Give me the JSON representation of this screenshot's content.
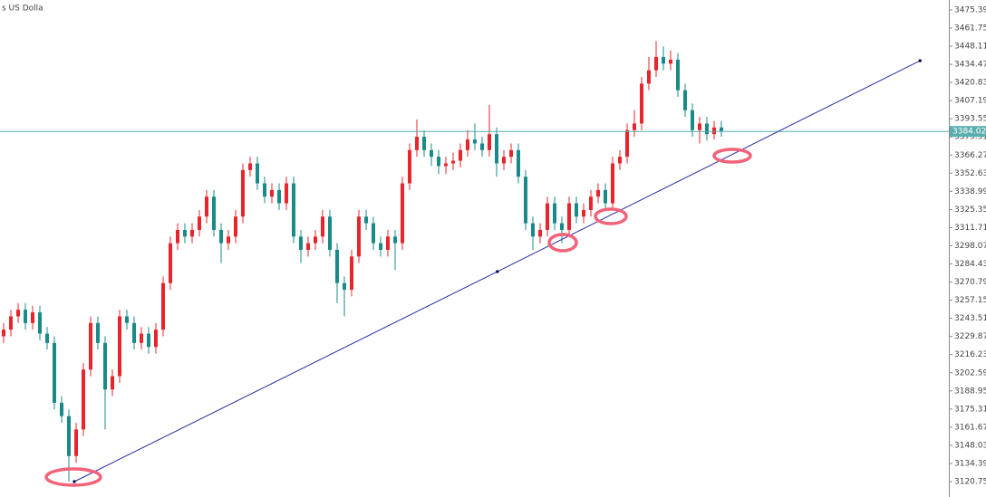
{
  "chart_data": {
    "type": "candlestick",
    "title": "s US Dolla",
    "up_color": "#e8242c",
    "down_color": "#1a8a88",
    "open": [
      3230,
      3235,
      3245,
      3250,
      3240,
      3248,
      3232,
      3225,
      3180,
      3170,
      3140,
      3160,
      3205,
      3240,
      3225,
      3190,
      3200,
      3245,
      3240,
      3225,
      3232,
      3222,
      3235,
      3270,
      3300,
      3310,
      3305,
      3310,
      3320,
      3335,
      3310,
      3300,
      3305,
      3320,
      3355,
      3360,
      3345,
      3335,
      3340,
      3330,
      3345,
      3305,
      3295,
      3300,
      3305,
      3320,
      3295,
      3270,
      3265,
      3290,
      3320,
      3315,
      3300,
      3295,
      3305,
      3300,
      3345,
      3370,
      3380,
      3370,
      3365,
      3358,
      3360,
      3362,
      3370,
      3378,
      3375,
      3370,
      3382,
      3360,
      3365,
      3370,
      3350,
      3315,
      3305,
      3310,
      3330,
      3315,
      3310,
      3330,
      3320,
      3325,
      3335,
      3340,
      3330,
      3360,
      3365,
      3385,
      3390,
      3420,
      3430,
      3440,
      3435,
      3438,
      3415,
      3400,
      3385,
      3390,
      3382,
      3387
    ],
    "high": [
      3240,
      3250,
      3255,
      3255,
      3253,
      3253,
      3237,
      3230,
      3185,
      3175,
      3165,
      3210,
      3245,
      3245,
      3230,
      3205,
      3250,
      3250,
      3245,
      3237,
      3237,
      3240,
      3275,
      3305,
      3315,
      3315,
      3315,
      3325,
      3340,
      3340,
      3315,
      3310,
      3325,
      3360,
      3365,
      3365,
      3350,
      3345,
      3345,
      3350,
      3350,
      3310,
      3305,
      3310,
      3325,
      3325,
      3300,
      3275,
      3295,
      3325,
      3325,
      3320,
      3305,
      3310,
      3310,
      3350,
      3375,
      3393,
      3385,
      3375,
      3370,
      3365,
      3368,
      3375,
      3385,
      3390,
      3380,
      3404,
      3387,
      3370,
      3375,
      3375,
      3355,
      3320,
      3315,
      3335,
      3335,
      3320,
      3335,
      3335,
      3330,
      3340,
      3345,
      3345,
      3365,
      3370,
      3390,
      3400,
      3425,
      3440,
      3452,
      3448,
      3445,
      3443,
      3420,
      3405,
      3395,
      3395,
      3392,
      3392
    ],
    "low": [
      3225,
      3230,
      3240,
      3235,
      3235,
      3227,
      3220,
      3175,
      3165,
      3120.75,
      3135,
      3155,
      3200,
      3220,
      3160,
      3185,
      3195,
      3235,
      3220,
      3220,
      3217,
      3217,
      3230,
      3265,
      3295,
      3300,
      3300,
      3305,
      3315,
      3305,
      3285,
      3295,
      3300,
      3315,
      3350,
      3340,
      3330,
      3330,
      3325,
      3325,
      3300,
      3285,
      3290,
      3295,
      3300,
      3290,
      3255,
      3245,
      3260,
      3285,
      3310,
      3295,
      3290,
      3290,
      3280,
      3295,
      3340,
      3365,
      3365,
      3358,
      3352,
      3352,
      3355,
      3357,
      3365,
      3370,
      3365,
      3365,
      3350,
      3355,
      3360,
      3345,
      3310,
      3295,
      3300,
      3305,
      3310,
      3300,
      3305,
      3315,
      3315,
      3320,
      3330,
      3325,
      3325,
      3355,
      3360,
      3380,
      3385,
      3415,
      3425,
      3430,
      3430,
      3410,
      3395,
      3380,
      3375,
      3377,
      3378,
      3380
    ],
    "close": [
      3235,
      3245,
      3250,
      3240,
      3248,
      3232,
      3225,
      3180,
      3170,
      3140,
      3160,
      3205,
      3240,
      3225,
      3190,
      3200,
      3245,
      3240,
      3225,
      3232,
      3222,
      3235,
      3270,
      3300,
      3310,
      3305,
      3310,
      3320,
      3335,
      3310,
      3300,
      3305,
      3320,
      3355,
      3360,
      3345,
      3335,
      3340,
      3330,
      3345,
      3305,
      3295,
      3300,
      3305,
      3320,
      3295,
      3270,
      3265,
      3290,
      3320,
      3315,
      3300,
      3295,
      3305,
      3300,
      3345,
      3370,
      3380,
      3370,
      3365,
      3358,
      3360,
      3362,
      3370,
      3378,
      3375,
      3370,
      3382,
      3360,
      3365,
      3370,
      3350,
      3315,
      3305,
      3310,
      3330,
      3315,
      3310,
      3330,
      3320,
      3325,
      3335,
      3340,
      3330,
      3360,
      3365,
      3385,
      3390,
      3420,
      3430,
      3440,
      3435,
      3438,
      3415,
      3400,
      3385,
      3390,
      3382,
      3387,
      3384.02
    ],
    "ylim": [
      3109.18,
      3482.85
    ],
    "yticks": [
      3120.75,
      3134.39,
      3148.03,
      3161.67,
      3175.31,
      3188.95,
      3202.59,
      3216.23,
      3229.87,
      3243.51,
      3257.15,
      3270.79,
      3284.43,
      3298.07,
      3311.71,
      3325.35,
      3338.99,
      3352.63,
      3366.27,
      3379.91,
      3393.55,
      3407.19,
      3420.83,
      3434.47,
      3448.11,
      3461.75,
      3475.39
    ],
    "current_price": 3384.02,
    "price_line_color": "#5aaeae",
    "trendline": {
      "x": [
        9.75,
        68.1,
        126.4
      ],
      "y": [
        3120.75,
        3278.65,
        3437.2
      ],
      "color": "#2a2aa0"
    }
  }
}
